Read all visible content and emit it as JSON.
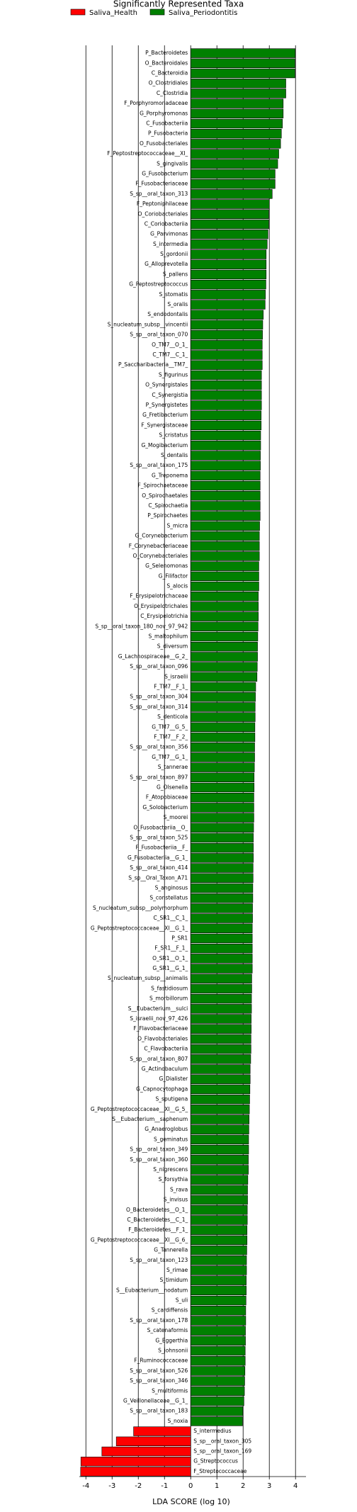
{
  "chart_data": {
    "type": "bar",
    "orientation": "horizontal",
    "title": "Significantly Represented Taxa",
    "xlabel": "LDA SCORE (log 10)",
    "xlim": [
      -4.25,
      4.4
    ],
    "xticks": [
      -4,
      -3,
      -2,
      -1,
      0,
      1,
      2,
      3,
      4
    ],
    "grid": true,
    "legend": "top-left",
    "categories": [
      "P_Bacteroidetes",
      "O_Bacteroidales",
      "C_Bacteroidia",
      "O_Clostridiales",
      "C_Clostridia",
      "F_Porphyromonadaceae",
      "G_Porphyromonas",
      "C_Fusobacteriia",
      "P_Fusobacteria",
      "O_Fusobacteriales",
      "F_Peptostreptococcaceae__XI_",
      "S_gingivalis",
      "G_Fusobacterium",
      "F_Fusobacteriaceae",
      "S_sp__oral_taxon_313",
      "F_Peptoniphilaceae",
      "O_Coriobacteriales",
      "C_Coriobacteriia",
      "G_Parvimonas",
      "S_intermedia",
      "S_gordonii",
      "G_Alloprevotella",
      "S_pallens",
      "G_Peptostreptococcus",
      "S_stomatis",
      "S_oralis",
      "S_endodontalis",
      "S_nucleatum_subsp__vincentii",
      "S_sp__oral_taxon_070",
      "O_TM7__O_1_",
      "C_TM7__C_1_",
      "P_Saccharibacteria__TM7_",
      "S_figurinus",
      "O_Synergistales",
      "C_Synergistia",
      "P_Synergistetes",
      "G_Fretibacterium",
      "F_Synergistaceae",
      "S_cristatus",
      "G_Mogibacterium",
      "S_dentalis",
      "S_sp__oral_taxon_175",
      "G_Treponema",
      "F_Spirochaetaceae",
      "O_Spirochaetales",
      "C_Spirochaetia",
      "P_Spirochaetes",
      "S_micra",
      "G_Corynebacterium",
      "F_Corynebacteriaceae",
      "O_Corynebacteriales",
      "G_Selenomonas",
      "G_Filifactor",
      "S_alocis",
      "F_Erysipelotrichaceae",
      "O_Erysipelotrichales",
      "C_Erysipelotrichia",
      "S_sp__oral_taxon_180_nov_97_942",
      "S_maltophilum",
      "S_diversum",
      "G_Lachnospiraceae__G_2_",
      "S_sp__oral_taxon_096",
      "S_israelii",
      "F_TM7__F_1_",
      "S_sp__oral_taxon_304",
      "S_sp__oral_taxon_314",
      "S_denticola",
      "G_TM7__G_5_",
      "F_TM7__F_2_",
      "S_sp__oral_taxon_356",
      "G_TM7__G_1_",
      "S_tannerae",
      "S_sp__oral_taxon_897",
      "G_Olsenella",
      "F_Atopobiaceae",
      "G_Solobacterium",
      "S_moorei",
      "O_Fusobacteriia__O_",
      "S_sp__oral_taxon_525",
      "F_Fusobacteriia__F_",
      "G_Fusobacteriia__G_1_",
      "S_sp__oral_taxon_414",
      "S_sp__Oral_Taxon_A71",
      "S_anginosus",
      "S_constellatus",
      "S_nucleatum_subsp__polymorphum",
      "C_SR1__C_1_",
      "G_Peptostreptococcaceae__XI__G_1_",
      "P_SR1",
      "F_SR1__F_1_",
      "O_SR1__O_1_",
      "G_SR1__G_1_",
      "S_nucleatum_subsp__animalis",
      "S_fastidiosum",
      "S_morbillorum",
      "S__Eubacterium__sulci",
      "S_israelii_nov_97_426",
      "F_Flavobacteriaceae",
      "O_Flavobacteriales",
      "C_Flavobacteriia",
      "S_sp__oral_taxon_807",
      "G_Actinobaculum",
      "G_Dialister",
      "G_Capnocytophaga",
      "S_sputigena",
      "G_Peptostreptococcaceae__XI__G_5_",
      "S__Eubacterium__saphenum",
      "G_Anaeroglobus",
      "S_geminatus",
      "S_sp__oral_taxon_349",
      "S_sp__oral_taxon_360",
      "S_nigrescens",
      "S_forsythia",
      "S_rava",
      "S_invisus",
      "O_Bacteroidetes__O_1_",
      "C_Bacteroidetes__C_1_",
      "F_Bacteroidetes__F_1_",
      "G_Peptostreptococcaceae__XI__G_6_",
      "G_Tannerella",
      "S_sp__oral_taxon_123",
      "S_rimae",
      "S_timidum",
      "S__Eubacterium__nodatum",
      "S_uli",
      "S_cardiffensis",
      "S_sp__oral_taxon_178",
      "S_catenaformis",
      "G_Eggerthia",
      "S_johnsonii",
      "F_Ruminococcaceae",
      "S_sp__oral_taxon_526",
      "S_sp__oral_taxon_346",
      "S_multiformis",
      "G_Veillonellaceae__G_1_",
      "S_sp__oral_taxon_183",
      "S_noxia",
      "S_intermedius",
      "S_sp__oral_taxon_305",
      "S_sp__oral_taxon_169",
      "G_Streptococcus",
      "F_Streptococcaceae"
    ],
    "series": [
      {
        "name": "Saliva_Health",
        "color": "#ff0000",
        "values": [
          null,
          null,
          null,
          null,
          null,
          null,
          null,
          null,
          null,
          null,
          null,
          null,
          null,
          null,
          null,
          null,
          null,
          null,
          null,
          null,
          null,
          null,
          null,
          null,
          null,
          null,
          null,
          null,
          null,
          null,
          null,
          null,
          null,
          null,
          null,
          null,
          null,
          null,
          null,
          null,
          null,
          null,
          null,
          null,
          null,
          null,
          null,
          null,
          null,
          null,
          null,
          null,
          null,
          null,
          null,
          null,
          null,
          null,
          null,
          null,
          null,
          null,
          null,
          null,
          null,
          null,
          null,
          null,
          null,
          null,
          null,
          null,
          null,
          null,
          null,
          null,
          null,
          null,
          null,
          null,
          null,
          null,
          null,
          null,
          null,
          null,
          null,
          null,
          null,
          null,
          null,
          null,
          null,
          null,
          null,
          null,
          null,
          null,
          null,
          null,
          null,
          null,
          null,
          null,
          null,
          null,
          null,
          null,
          null,
          null,
          null,
          null,
          null,
          null,
          null,
          null,
          null,
          null,
          null,
          null,
          null,
          null,
          null,
          null,
          null,
          null,
          null,
          null,
          null,
          null,
          null,
          null,
          null,
          null,
          null,
          null,
          null,
          -2.18,
          -2.84,
          -3.39,
          -4.19,
          -4.2
        ]
      },
      {
        "name": "Saliva_Periodontitis",
        "color": "#008000",
        "values": [
          3.99,
          3.98,
          3.98,
          3.63,
          3.63,
          3.53,
          3.53,
          3.5,
          3.46,
          3.43,
          3.36,
          3.32,
          3.22,
          3.22,
          3.11,
          3.0,
          2.98,
          2.98,
          2.95,
          2.92,
          2.88,
          2.88,
          2.88,
          2.87,
          2.85,
          2.84,
          2.77,
          2.75,
          2.74,
          2.73,
          2.73,
          2.73,
          2.7,
          2.7,
          2.7,
          2.7,
          2.69,
          2.69,
          2.67,
          2.67,
          2.66,
          2.66,
          2.65,
          2.65,
          2.65,
          2.65,
          2.65,
          2.63,
          2.62,
          2.62,
          2.62,
          2.6,
          2.6,
          2.6,
          2.58,
          2.58,
          2.58,
          2.57,
          2.56,
          2.55,
          2.55,
          2.54,
          2.53,
          2.48,
          2.47,
          2.46,
          2.46,
          2.45,
          2.45,
          2.44,
          2.44,
          2.43,
          2.42,
          2.42,
          2.41,
          2.41,
          2.41,
          2.4,
          2.39,
          2.39,
          2.39,
          2.38,
          2.38,
          2.37,
          2.37,
          2.36,
          2.36,
          2.35,
          2.35,
          2.35,
          2.35,
          2.35,
          2.33,
          2.33,
          2.32,
          2.32,
          2.31,
          2.31,
          2.3,
          2.3,
          2.29,
          2.27,
          2.27,
          2.26,
          2.25,
          2.24,
          2.23,
          2.22,
          2.21,
          2.21,
          2.2,
          2.2,
          2.18,
          2.17,
          2.17,
          2.16,
          2.16,
          2.15,
          2.15,
          2.14,
          2.13,
          2.13,
          2.12,
          2.12,
          2.11,
          2.1,
          2.1,
          2.09,
          2.09,
          2.08,
          2.08,
          2.07,
          2.06,
          2.05,
          2.03,
          1.99,
          1.98,
          null,
          null,
          null,
          null,
          null
        ]
      }
    ]
  }
}
